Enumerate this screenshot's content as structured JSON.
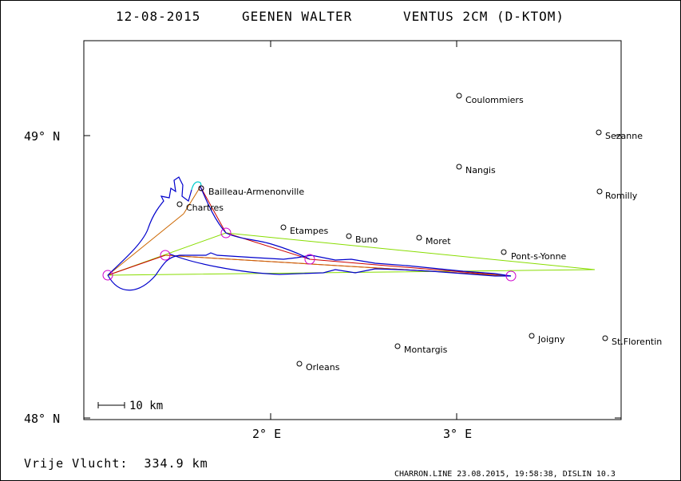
{
  "header": {
    "date": "12-08-2015",
    "pilot": "GEENEN WALTER",
    "glider": "VENTUS 2CM (D-KTOM)"
  },
  "axes": {
    "lat_labels": [
      "49° N",
      "48° N"
    ],
    "lon_labels": [
      "2° E",
      "3° E"
    ]
  },
  "scale": {
    "label": "10 km"
  },
  "places": [
    {
      "name": "Coulommiers"
    },
    {
      "name": "Sezanne"
    },
    {
      "name": "Nangis"
    },
    {
      "name": "Romilly"
    },
    {
      "name": "Bailleau-Armenonville"
    },
    {
      "name": "Chartres"
    },
    {
      "name": "Etampes"
    },
    {
      "name": "Buno"
    },
    {
      "name": "Moret"
    },
    {
      "name": "Pont-s-Yonne"
    },
    {
      "name": "Joigny"
    },
    {
      "name": "St.Florentin"
    },
    {
      "name": "Montargis"
    },
    {
      "name": "Orleans"
    }
  ],
  "footer": {
    "distance": "Vrije Vlucht:  334.9 km",
    "source": "CHARRON.LINE 23.08.2015, 19:58:38, DISLIN 10.3"
  },
  "colors": {
    "track": "#0000cc",
    "track_climb": "#00cccc",
    "task": "#cc0000",
    "triangle": "#88dd00",
    "turnpoint": "#cc00cc",
    "leg": "#cc6600"
  }
}
